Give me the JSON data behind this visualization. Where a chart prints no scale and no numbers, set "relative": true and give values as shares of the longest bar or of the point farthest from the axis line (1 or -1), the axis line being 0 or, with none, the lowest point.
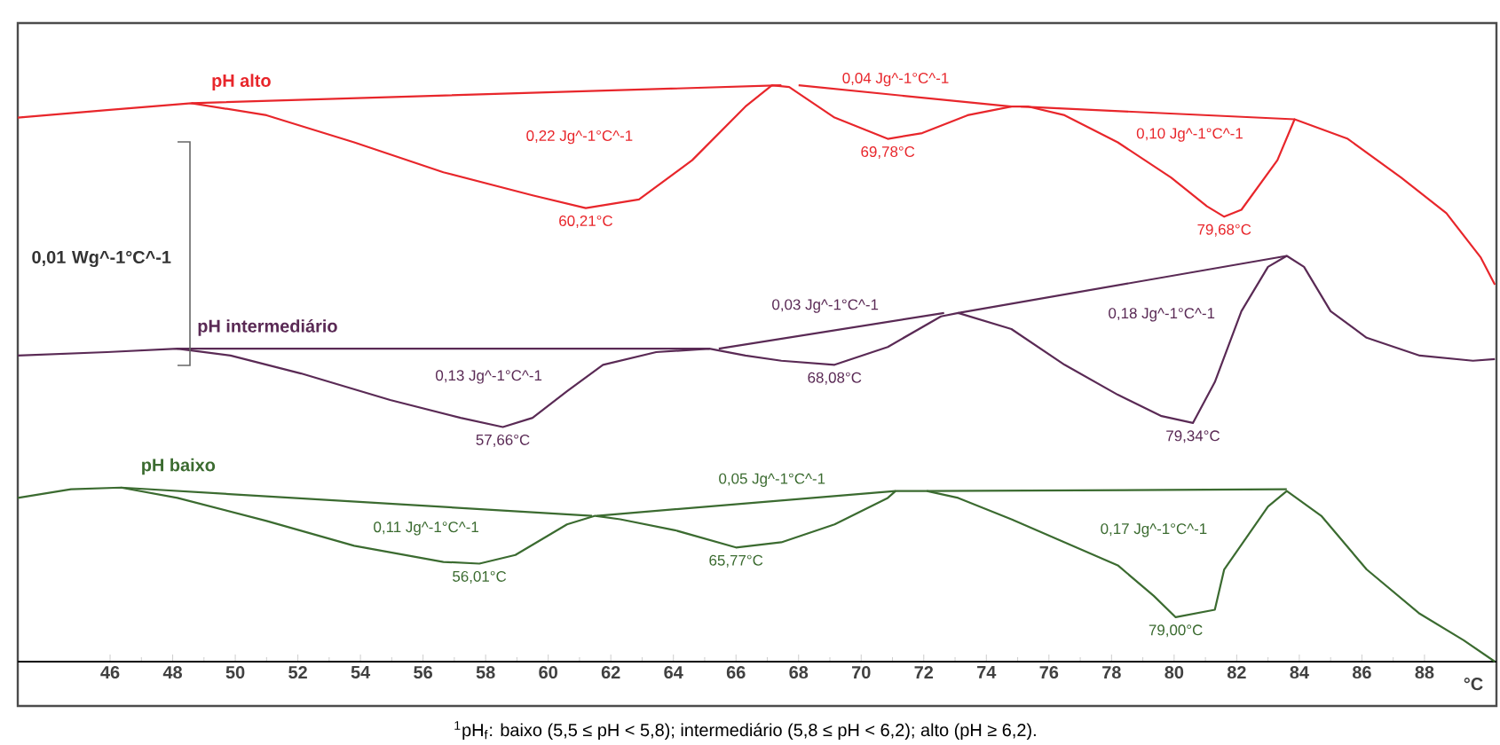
{
  "chart_data": {
    "type": "line",
    "relative": true,
    "xlim": [
      43.05,
      90.3
    ],
    "xticks": [
      46,
      48,
      50,
      52,
      54,
      56,
      58,
      60,
      62,
      64,
      66,
      68,
      70,
      72,
      74,
      76,
      78,
      80,
      82,
      84,
      86,
      88
    ],
    "xlabel": "°C",
    "series": [
      {
        "name": "pH alto",
        "color": "#e8262b",
        "x": [
          43.05,
          45.9,
          48.6,
          51.0,
          53.8,
          56.65,
          59.5,
          61.2,
          62.9,
          64.6,
          66.3,
          67.15,
          67.7,
          69.15,
          70.85,
          71.95,
          73.4,
          74.8,
          75.35,
          76.5,
          78.2,
          79.9,
          81.05,
          81.6,
          82.15,
          83.3,
          83.85,
          85.55,
          87.25,
          88.7,
          89.8,
          90.25
        ],
        "values": [
          0.944,
          0.957,
          0.969,
          0.948,
          0.901,
          0.849,
          0.809,
          0.787,
          0.802,
          0.87,
          0.963,
          1.0,
          0.997,
          0.944,
          0.907,
          0.917,
          0.948,
          0.963,
          0.963,
          0.948,
          0.901,
          0.84,
          0.79,
          0.772,
          0.784,
          0.87,
          0.941,
          0.907,
          0.84,
          0.778,
          0.701,
          0.654
        ]
      },
      {
        "color": "#e8262b",
        "x": [
          48.6,
          67.45,
          null,
          68.0,
          74.8,
          null,
          75.1,
          83.85
        ],
        "values": [
          0.969,
          1.0,
          null,
          1.0,
          0.963,
          null,
          0.963,
          0.941
        ]
      },
      {
        "name": "pH intermediário",
        "color": "#5a2a55",
        "x": [
          43.05,
          45.9,
          48.15,
          49.85,
          52.1,
          54.95,
          57.2,
          58.55,
          59.5,
          60.6,
          61.75,
          63.45,
          65.15,
          66.3,
          67.45,
          69.15,
          70.85,
          72.55,
          73.1,
          74.8,
          76.5,
          78.2,
          79.6,
          80.6,
          81.3,
          82.15,
          83.0,
          83.6,
          84.15,
          85.0,
          86.15,
          87.85,
          89.55,
          90.25
        ],
        "values": [
          0.531,
          0.537,
          0.543,
          0.531,
          0.5,
          0.454,
          0.423,
          0.407,
          0.423,
          0.469,
          0.515,
          0.537,
          0.543,
          0.531,
          0.522,
          0.515,
          0.546,
          0.599,
          0.605,
          0.577,
          0.515,
          0.463,
          0.426,
          0.414,
          0.485,
          0.608,
          0.685,
          0.704,
          0.685,
          0.608,
          0.562,
          0.531,
          0.522,
          0.525
        ]
      },
      {
        "color": "#5a2a55",
        "x": [
          48.15,
          65.15,
          null,
          65.45,
          72.65,
          null,
          73.1,
          83.6
        ],
        "values": [
          0.543,
          0.543,
          null,
          0.543,
          0.605,
          null,
          0.605,
          0.704
        ]
      },
      {
        "name": "pH baixo",
        "color": "#3b6b30",
        "x": [
          43.05,
          44.75,
          46.35,
          48.15,
          51.0,
          53.8,
          56.65,
          57.8,
          58.95,
          60.6,
          61.5,
          62.3,
          64.05,
          66.0,
          67.45,
          69.15,
          70.85,
          71.1,
          72.1,
          73.1,
          74.8,
          76.5,
          78.2,
          79.35,
          80.05,
          81.3,
          81.6,
          83.0,
          83.6,
          84.7,
          86.15,
          87.85,
          89.25,
          90.25
        ],
        "values": [
          0.284,
          0.299,
          0.302,
          0.284,
          0.244,
          0.201,
          0.173,
          0.17,
          0.185,
          0.238,
          0.253,
          0.247,
          0.228,
          0.198,
          0.207,
          0.238,
          0.284,
          0.296,
          0.296,
          0.284,
          0.247,
          0.207,
          0.167,
          0.114,
          0.077,
          0.09,
          0.16,
          0.269,
          0.296,
          0.253,
          0.16,
          0.083,
          0.037,
          0.0
        ]
      },
      {
        "color": "#3b6b30",
        "x": [
          46.35,
          61.4,
          null,
          61.55,
          71.1,
          null,
          72.1,
          83.6
        ],
        "values": [
          0.302,
          0.253,
          null,
          0.253,
          0.296,
          null,
          0.296,
          0.299
        ]
      }
    ],
    "annotations": [
      "0,22 Jg^-1°C^-1",
      {
        "text": "60,21°C",
        "x": 61.2,
        "y": 0.787
      },
      "0,04 Jg^-1°C^-1",
      {
        "text": "69,78°C",
        "x": 70.85,
        "y": 0.907
      },
      "0,10 Jg^-1°C^-1",
      {
        "text": "79,68°C",
        "x": 81.6,
        "y": 0.772
      },
      "0,13 Jg^-1°C^-1",
      {
        "text": "57,66°C",
        "x": 58.55,
        "y": 0.407
      },
      "0,03 Jg^-1°C^-1",
      {
        "text": "68,08°C",
        "x": 69.15,
        "y": 0.515
      },
      "0,18 Jg^-1°C^-1",
      {
        "text": "79,34°C",
        "x": 80.6,
        "y": 0.414
      },
      "0,11 Jg^-1°C^-1",
      {
        "text": "56,01°C",
        "x": 57.8,
        "y": 0.17
      },
      "0,05 Jg^-1°C^-1",
      {
        "text": "65,77°C",
        "x": 66.0,
        "y": 0.198
      },
      "0,17 Jg^-1°C^-1",
      {
        "text": "79,00°C",
        "x": 80.05,
        "y": 0.077
      },
      "0,01 Wg^-1°C^-1",
      "$^{1}$pH$_{f}$: baixo (5,5 ≤ pH < 5,8); intermediário (5,8 ≤ pH < 6,2); alto (pH ≥ 6,2)."
    ]
  }
}
